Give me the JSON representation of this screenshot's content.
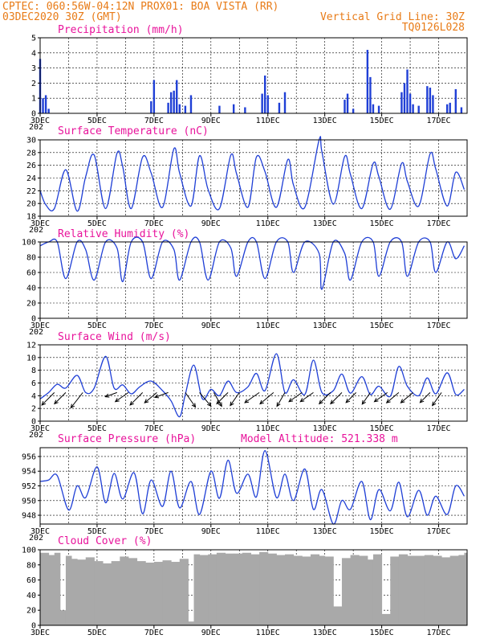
{
  "header": {
    "line1_left": "CPTEC:   060:56W-04:12N  PROX01: BOA VISTA (RR)",
    "line2_left": "03DEC2020 30Z (GMT)",
    "line2_right": "Vertical Grid Line: 30Z",
    "line3_right": "TQ0126L028"
  },
  "colors": {
    "header": "#e87b17",
    "title": "#e8139b",
    "series": "#1f3fd6",
    "cloud": "#a9a9a9"
  },
  "x_axis": {
    "day_start": 3,
    "day_end": 18,
    "tick_labels": [
      "3DEC",
      "5DEC",
      "7DEC",
      "9DEC",
      "11DEC",
      "13DEC",
      "15DEC",
      "17DEC"
    ],
    "tick_days": [
      3,
      5,
      7,
      9,
      11,
      13,
      15,
      17
    ],
    "year_stub": "202"
  },
  "chart_data": [
    {
      "id": "precip",
      "type": "bar",
      "title": "Precipitation (mm/h)",
      "ylim": [
        0,
        5
      ],
      "yticks": [
        0,
        1,
        2,
        3,
        4,
        5
      ],
      "grid": "dashed-horizontal",
      "x": [
        3.0,
        3.1,
        3.2,
        3.3,
        6.9,
        7.0,
        7.5,
        7.6,
        7.7,
        7.8,
        7.9,
        8.1,
        8.3,
        9.3,
        9.8,
        10.2,
        10.8,
        10.9,
        11.0,
        11.4,
        11.6,
        13.7,
        13.8,
        14.0,
        14.5,
        14.6,
        14.7,
        14.9,
        15.7,
        15.8,
        15.9,
        16.0,
        16.1,
        16.3,
        16.6,
        16.7,
        16.8,
        17.3,
        17.4,
        17.6,
        17.8
      ],
      "values": [
        3.6,
        1.0,
        1.2,
        0.3,
        0.8,
        2.2,
        0.7,
        1.4,
        1.5,
        2.2,
        0.6,
        0.5,
        1.2,
        0.5,
        0.6,
        0.4,
        1.3,
        2.5,
        1.2,
        0.7,
        1.4,
        0.9,
        1.3,
        0.3,
        4.2,
        2.4,
        0.6,
        0.5,
        1.4,
        2.0,
        2.9,
        1.3,
        0.6,
        0.5,
        1.8,
        1.7,
        1.2,
        0.6,
        0.7,
        1.6,
        0.4
      ]
    },
    {
      "id": "temp",
      "type": "line",
      "title": "Surface Temperature (nC)",
      "ylim": [
        18,
        30
      ],
      "yticks": [
        18,
        20,
        22,
        24,
        26,
        28,
        30
      ],
      "grid": "dashed-horizontal",
      "x": [
        3.0,
        3.2,
        3.5,
        3.9,
        4.3,
        4.6,
        4.9,
        5.3,
        5.7,
        5.9,
        6.2,
        6.6,
        6.9,
        7.3,
        7.7,
        7.9,
        8.3,
        8.6,
        8.9,
        9.3,
        9.7,
        9.9,
        10.3,
        10.6,
        10.9,
        11.3,
        11.7,
        11.9,
        12.3,
        12.8,
        12.9,
        13.3,
        13.7,
        13.9,
        14.3,
        14.7,
        14.9,
        15.3,
        15.7,
        15.9,
        16.3,
        16.7,
        16.9,
        17.3,
        17.6,
        17.9
      ],
      "values": [
        22.0,
        19.8,
        19.2,
        25.3,
        18.8,
        24.2,
        27.6,
        19.2,
        27.9,
        25.8,
        19.2,
        27.3,
        24.8,
        19.4,
        28.6,
        24.8,
        19.6,
        27.5,
        22.2,
        19.2,
        27.6,
        24.7,
        19.4,
        27.3,
        25.0,
        19.4,
        26.9,
        22.9,
        19.4,
        30.0,
        28.1,
        19.9,
        27.4,
        24.6,
        19.2,
        26.3,
        24.2,
        19.1,
        26.3,
        23.5,
        19.6,
        27.8,
        25.4,
        19.6,
        24.9,
        22.2
      ]
    },
    {
      "id": "rh",
      "type": "line",
      "title": "Relative Humidity (%)",
      "ylim": [
        0,
        100
      ],
      "yticks": [
        0,
        20,
        40,
        60,
        80,
        100
      ],
      "grid": "dashed-horizontal",
      "x": [
        3.0,
        3.3,
        3.6,
        3.9,
        4.3,
        4.6,
        4.9,
        5.3,
        5.7,
        5.9,
        6.2,
        6.6,
        6.9,
        7.3,
        7.7,
        7.9,
        8.3,
        8.6,
        8.9,
        9.3,
        9.7,
        9.9,
        10.3,
        10.6,
        10.9,
        11.3,
        11.7,
        11.9,
        12.3,
        12.8,
        12.9,
        13.3,
        13.7,
        13.9,
        14.3,
        14.7,
        14.9,
        15.3,
        15.7,
        15.9,
        16.3,
        16.7,
        16.9,
        17.3,
        17.6,
        17.9
      ],
      "values": [
        95,
        100,
        100,
        52,
        100,
        90,
        50,
        100,
        92,
        48,
        100,
        100,
        52,
        100,
        90,
        50,
        100,
        100,
        50,
        100,
        92,
        55,
        100,
        100,
        52,
        100,
        100,
        60,
        100,
        85,
        38,
        100,
        85,
        50,
        100,
        100,
        55,
        100,
        100,
        55,
        100,
        100,
        60,
        100,
        78,
        95
      ]
    },
    {
      "id": "wind",
      "type": "line",
      "title": "Surface Wind (m/s)",
      "ylim": [
        0,
        12
      ],
      "yticks": [
        0,
        2,
        4,
        6,
        8,
        10,
        12
      ],
      "grid": "dashed-horizontal",
      "x": [
        3.0,
        3.3,
        3.6,
        3.9,
        4.3,
        4.6,
        4.9,
        5.3,
        5.6,
        5.9,
        6.2,
        6.5,
        6.9,
        7.3,
        7.6,
        7.9,
        8.1,
        8.4,
        8.7,
        9.0,
        9.3,
        9.6,
        9.9,
        10.3,
        10.6,
        10.9,
        11.3,
        11.6,
        11.9,
        12.3,
        12.6,
        12.9,
        13.3,
        13.6,
        13.9,
        14.3,
        14.6,
        14.9,
        15.3,
        15.6,
        15.9,
        16.3,
        16.6,
        16.9,
        17.3,
        17.6,
        17.9
      ],
      "values": [
        3.5,
        4.5,
        5.8,
        5.2,
        7.2,
        4.5,
        5.2,
        10.2,
        5.2,
        5.7,
        4.3,
        5.4,
        6.3,
        4.8,
        3.2,
        0.7,
        4.2,
        8.8,
        3.5,
        5.0,
        4.0,
        6.3,
        4.5,
        5.4,
        7.5,
        4.8,
        10.6,
        4.5,
        6.5,
        4.2,
        9.6,
        4.5,
        4.8,
        7.4,
        4.4,
        7.0,
        4.2,
        5.5,
        3.9,
        8.6,
        5.5,
        4.0,
        6.8,
        4.3,
        7.6,
        4.2,
        5.0
      ],
      "vectors_x": [
        3.5,
        3.9,
        4.5,
        5.7,
        6.1,
        6.6,
        7.1,
        7.5,
        8.1,
        8.6,
        9.1,
        9.6,
        10.0,
        10.7,
        11.2,
        11.6,
        12.2,
        12.6,
        13.2,
        13.6,
        14.1,
        14.6,
        15.2,
        15.6,
        16.1,
        16.7,
        17.1
      ],
      "vectors_dir": [
        225,
        225,
        232,
        200,
        215,
        225,
        220,
        200,
        305,
        310,
        300,
        225,
        235,
        215,
        220,
        240,
        215,
        215,
        225,
        225,
        225,
        235,
        215,
        220,
        220,
        225,
        235
      ],
      "vectors_len": [
        1.0,
        0.9,
        1.1,
        0.7,
        0.9,
        1.0,
        0.9,
        0.8,
        1.0,
        1.0,
        0.9,
        0.9,
        0.9,
        1.0,
        1.0,
        0.9,
        0.9,
        0.9,
        0.9,
        0.9,
        0.8,
        0.8,
        0.9,
        0.9,
        0.9,
        0.8,
        0.9
      ]
    },
    {
      "id": "press",
      "type": "line",
      "title": "Surface Pressure (hPa)",
      "annotation": "Model Altitude: 521.338 m",
      "ylim": [
        946.8,
        957.2
      ],
      "yticks": [
        948,
        950,
        952,
        954,
        956
      ],
      "grid": "dashed-horizontal",
      "x": [
        3.0,
        3.3,
        3.6,
        4.0,
        4.3,
        4.6,
        5.0,
        5.3,
        5.6,
        5.9,
        6.3,
        6.6,
        6.9,
        7.3,
        7.6,
        7.9,
        8.3,
        8.6,
        9.0,
        9.3,
        9.6,
        9.9,
        10.3,
        10.6,
        10.9,
        11.3,
        11.6,
        11.9,
        12.3,
        12.6,
        12.9,
        13.3,
        13.6,
        13.9,
        14.3,
        14.6,
        14.9,
        15.3,
        15.6,
        15.9,
        16.3,
        16.6,
        16.9,
        17.3,
        17.6,
        17.9
      ],
      "values": [
        952.6,
        952.8,
        953.4,
        948.7,
        952.0,
        950.4,
        954.6,
        949.7,
        953.7,
        950.2,
        953.8,
        948.2,
        952.8,
        949.2,
        954.0,
        949.0,
        952.6,
        948.1,
        954.0,
        950.3,
        955.5,
        951.0,
        953.6,
        950.5,
        956.8,
        950.4,
        953.6,
        950.0,
        954.3,
        948.8,
        951.5,
        946.8,
        950.0,
        948.8,
        952.6,
        947.4,
        951.5,
        948.6,
        952.5,
        947.8,
        951.4,
        948.0,
        950.6,
        948.1,
        952.0,
        950.6
      ]
    },
    {
      "id": "cloud",
      "type": "bar",
      "title": "Cloud Cover (%)",
      "ylim": [
        0,
        100
      ],
      "yticks": [
        0,
        20,
        40,
        60,
        80,
        100
      ],
      "grid": "dashed-horizontal",
      "x": [
        3.0,
        3.3,
        3.5,
        3.7,
        3.9,
        4.1,
        4.3,
        4.6,
        4.9,
        5.2,
        5.5,
        5.8,
        6.1,
        6.4,
        6.7,
        7.0,
        7.3,
        7.6,
        7.9,
        8.2,
        8.4,
        8.6,
        8.9,
        9.2,
        9.5,
        9.8,
        10.1,
        10.4,
        10.7,
        11.0,
        11.3,
        11.6,
        11.9,
        12.2,
        12.5,
        12.8,
        13.0,
        13.3,
        13.6,
        13.9,
        14.2,
        14.5,
        14.7,
        15.0,
        15.3,
        15.6,
        15.9,
        16.2,
        16.5,
        16.8,
        17.1,
        17.4,
        17.7,
        17.9
      ],
      "values": [
        96,
        93,
        96,
        20,
        92,
        88,
        87,
        90,
        85,
        82,
        85,
        91,
        89,
        85,
        83,
        84,
        86,
        84,
        88,
        5,
        94,
        93,
        94,
        96,
        95,
        95,
        96,
        94,
        97,
        95,
        93,
        94,
        92,
        91,
        94,
        92,
        91,
        25,
        89,
        93,
        92,
        87,
        94,
        15,
        91,
        94,
        92,
        92,
        93,
        92,
        90,
        92,
        93,
        96
      ]
    }
  ]
}
